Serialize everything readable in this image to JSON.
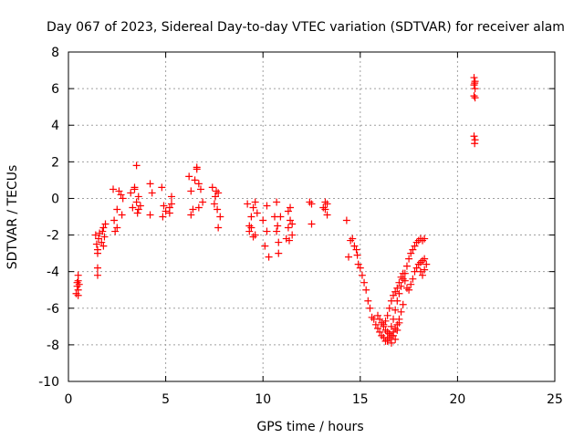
{
  "chart_data": {
    "type": "scatter",
    "title": "Day 067 of 2023, Sidereal Day-to-day VTEC variation (SDTVAR) for receiver alam",
    "xlabel": "GPS time / hours",
    "ylabel": "SDTVAR / TECUs",
    "xlim": [
      0,
      25
    ],
    "ylim": [
      -10,
      8
    ],
    "xticks": [
      0,
      5,
      10,
      15,
      20,
      25
    ],
    "yticks": [
      -10,
      -8,
      -6,
      -4,
      -2,
      0,
      2,
      4,
      6,
      8
    ],
    "xtick_labels": [
      "0",
      "5",
      "10",
      "15",
      "20",
      "25"
    ],
    "ytick_labels": [
      "-10",
      "-8",
      "-6",
      "-4",
      "-2",
      "0",
      "2",
      "4",
      "6",
      "8"
    ],
    "grid": true,
    "marker": "+",
    "marker_color": "#ff0000",
    "series": [
      {
        "name": "SDTVAR",
        "x": [
          0.4,
          0.45,
          0.5,
          0.5,
          0.55,
          0.5,
          0.45,
          0.5,
          1.4,
          1.45,
          1.5,
          1.5,
          1.55,
          1.6,
          1.5,
          1.5,
          1.7,
          1.8,
          1.8,
          1.9,
          1.85,
          1.75,
          2.3,
          2.35,
          2.4,
          2.5,
          2.6,
          2.7,
          2.75,
          2.8,
          2.5,
          3.2,
          3.3,
          3.4,
          3.5,
          3.55,
          3.6,
          3.7,
          3.5,
          3.4,
          3.6,
          4.2,
          4.3,
          4.2,
          4.8,
          4.9,
          5.0,
          4.85,
          5.2,
          5.3,
          5.2,
          5.3,
          6.2,
          6.3,
          6.4,
          6.5,
          6.6,
          6.7,
          6.8,
          6.9,
          6.6,
          6.7,
          6.3,
          7.4,
          7.5,
          7.6,
          7.7,
          7.8,
          7.55,
          7.65,
          7.7,
          9.2,
          9.3,
          9.4,
          9.5,
          9.6,
          9.7,
          9.5,
          9.4,
          9.3,
          9.6,
          10.0,
          10.1,
          10.2,
          10.3,
          10.2,
          10.6,
          10.7,
          10.8,
          10.9,
          10.7,
          10.8,
          10.75,
          11.2,
          11.3,
          11.4,
          11.5,
          11.3,
          11.4,
          11.35,
          11.5,
          12.4,
          12.5,
          12.5,
          13.1,
          13.2,
          13.3,
          13.2,
          13.3,
          14.3,
          14.4,
          14.5,
          14.6,
          14.7,
          14.8,
          14.85,
          14.9,
          15.0,
          15.1,
          15.2,
          15.3,
          15.4,
          15.5,
          15.6,
          15.7,
          15.8,
          15.9,
          16.0,
          16.1,
          16.2,
          16.3,
          16.4,
          16.5,
          16.6,
          16.7,
          16.8,
          16.9,
          17.0,
          17.1,
          17.2,
          17.3,
          17.4,
          17.5,
          17.6,
          17.7,
          17.8,
          17.9,
          18.0,
          18.1,
          18.2,
          18.3,
          15.9,
          16.0,
          16.1,
          16.2,
          16.3,
          16.4,
          16.5,
          16.6,
          16.7,
          16.8,
          16.9,
          17.0,
          17.1,
          17.2,
          16.2,
          16.3,
          16.4,
          16.5,
          16.6,
          16.7,
          16.8,
          16.9,
          17.0,
          17.1,
          17.2,
          17.3,
          17.4,
          17.5,
          17.6,
          17.7,
          17.8,
          17.9,
          18.0,
          18.1,
          18.2,
          18.3,
          18.1,
          18.2,
          18.3,
          18.4,
          16.4,
          16.5,
          16.6,
          16.7,
          16.8,
          16.9,
          17.0,
          20.85,
          20.9,
          20.85,
          20.9,
          20.85,
          20.9,
          20.85,
          20.9,
          20.88,
          20.88
        ],
        "y": [
          -5.2,
          -4.8,
          -4.5,
          -4.2,
          -4.7,
          -5.0,
          -4.6,
          -5.3,
          -2.0,
          -2.5,
          -3.8,
          -4.2,
          -2.2,
          -1.9,
          -2.8,
          -3.0,
          -2.4,
          -1.6,
          -2.6,
          -1.4,
          -2.1,
          -1.8,
          0.5,
          -1.2,
          -1.8,
          -0.6,
          0.4,
          0.2,
          -0.9,
          0.0,
          -1.6,
          0.3,
          -0.5,
          0.6,
          1.8,
          -0.8,
          0.1,
          -0.4,
          -0.2,
          0.5,
          -0.6,
          0.8,
          0.3,
          -0.9,
          0.6,
          -0.4,
          -0.7,
          -1.0,
          -0.5,
          0.1,
          -0.8,
          -0.3,
          1.2,
          0.4,
          -0.6,
          1.0,
          1.6,
          0.8,
          0.5,
          -0.2,
          1.7,
          -0.5,
          -0.9,
          0.6,
          -0.3,
          0.4,
          -1.6,
          -1.0,
          0.1,
          -0.6,
          0.3,
          -0.3,
          -1.8,
          -1.6,
          -0.5,
          -2.0,
          -0.8,
          -2.1,
          -1.0,
          -1.5,
          -0.2,
          -1.2,
          -2.6,
          -0.4,
          -3.2,
          -1.8,
          -1.0,
          -1.8,
          -2.4,
          -1.0,
          -0.2,
          -3.0,
          -1.5,
          -2.2,
          -0.7,
          -1.2,
          -2.0,
          -1.6,
          -0.5,
          -2.3,
          -1.4,
          -0.2,
          -1.4,
          -0.3,
          -0.5,
          -0.2,
          -0.9,
          -0.6,
          -0.3,
          -1.2,
          -3.2,
          -2.3,
          -2.2,
          -2.6,
          -2.8,
          -3.1,
          -3.6,
          -3.8,
          -4.2,
          -4.6,
          -5.0,
          -5.6,
          -6.0,
          -6.5,
          -6.6,
          -6.9,
          -7.1,
          -7.3,
          -7.5,
          -7.6,
          -7.8,
          -7.7,
          -7.4,
          -7.0,
          -6.6,
          -6.1,
          -5.6,
          -5.2,
          -4.8,
          -4.4,
          -4.1,
          -3.7,
          -3.3,
          -3.0,
          -2.8,
          -2.6,
          -2.4,
          -2.3,
          -2.2,
          -2.3,
          -2.2,
          -6.4,
          -6.6,
          -6.8,
          -7.0,
          -7.2,
          -7.3,
          -7.4,
          -7.5,
          -7.3,
          -7.1,
          -6.9,
          -6.6,
          -6.2,
          -5.8,
          -6.9,
          -6.7,
          -6.4,
          -6.0,
          -5.6,
          -5.3,
          -5.1,
          -4.9,
          -4.6,
          -4.3,
          -4.1,
          -4.5,
          -4.9,
          -5.0,
          -4.7,
          -4.4,
          -4.0,
          -3.8,
          -3.6,
          -3.5,
          -3.4,
          -3.3,
          -4.0,
          -4.2,
          -3.9,
          -3.6,
          -7.8,
          -7.6,
          -7.9,
          -7.5,
          -7.7,
          -7.2,
          -6.8,
          6.6,
          6.4,
          6.2,
          6.0,
          5.6,
          5.5,
          3.4,
          3.2,
          3.0,
          6.3
        ]
      }
    ]
  }
}
